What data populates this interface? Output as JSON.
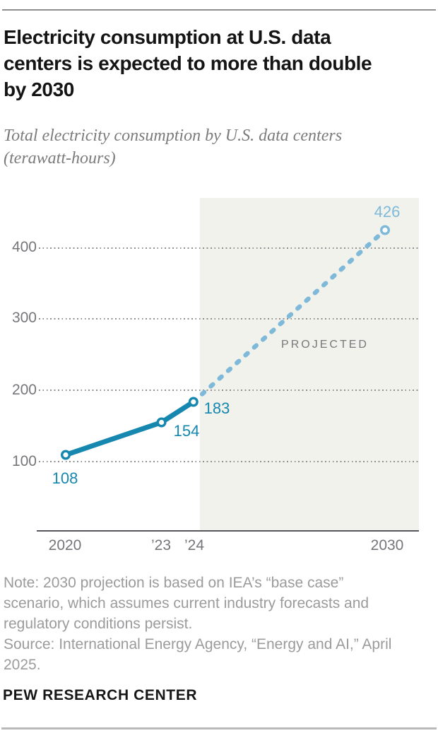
{
  "header": {
    "title": "Electricity consumption at U.S. data centers is expected to more than double by 2030",
    "subtitle": "Total electricity consumption by U.S. data centers (terawatt-hours)"
  },
  "chart_data": {
    "type": "line",
    "title": "Total electricity consumption by U.S. data centers (terawatt-hours)",
    "xlabel": "",
    "ylabel": "terawatt-hours",
    "x_tick_labels": [
      "2020",
      "’23",
      "’24",
      "2030"
    ],
    "y_tick_labels": [
      "400",
      "300",
      "200",
      "100"
    ],
    "y_gridlines": [
      400,
      300,
      200,
      100
    ],
    "ylim": [
      0,
      470
    ],
    "xlim": [
      2019.1,
      2031
    ],
    "grid": "dotted-horizontal",
    "series": [
      {
        "name": "actual",
        "style": "solid",
        "color": "#1687ae",
        "x": [
          2020,
          2023,
          2024
        ],
        "values": [
          108,
          154,
          183
        ]
      },
      {
        "name": "projected",
        "style": "dashed",
        "color": "#7fb9d9",
        "x": [
          2024,
          2030
        ],
        "values": [
          183,
          426
        ]
      }
    ],
    "point_labels": [
      "108",
      "154",
      "183",
      "426"
    ],
    "projected_label": "PROJECTED",
    "projected_region": {
      "x_start": 2024.2,
      "x_end": 2031,
      "fill": "#f2f2ec"
    }
  },
  "footer": {
    "note": "Note: 2030 projection is based on IEA’s “base case” scenario, which assumes current industry forecasts and regulatory conditions persist.",
    "source": "Source: International Energy Agency, “Energy and AI,” April 2025.",
    "brand": "PEW RESEARCH CENTER"
  }
}
